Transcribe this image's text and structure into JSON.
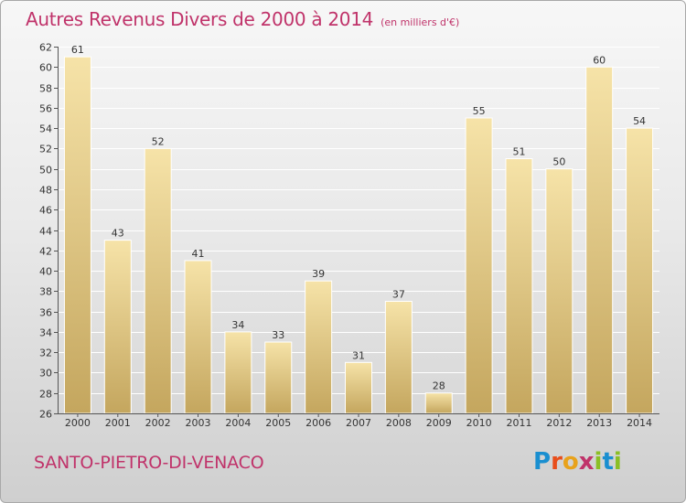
{
  "header": {
    "title": "Autres Revenus Divers de 2000 à 2014",
    "subtitle": "(en milliers d'€)"
  },
  "footer": {
    "place": "SANTO-PIETRO-DI-VENACO",
    "logo": "Proxiti"
  },
  "colors": {
    "title": "#c0336a",
    "bar_light": "#f6e3a8",
    "bar_dark": "#c4a65e",
    "logo_letters": [
      "#1a8fd0",
      "#e84e1b",
      "#e8a21b",
      "#c0336a",
      "#8bbf25",
      "#1a8fd0",
      "#8bbf25"
    ]
  },
  "chart_data": {
    "type": "bar",
    "title": "Autres Revenus Divers de 2000 à 2014",
    "subtitle": "(en milliers d'€)",
    "xlabel": "",
    "ylabel": "",
    "categories": [
      "2000",
      "2001",
      "2002",
      "2003",
      "2004",
      "2005",
      "2006",
      "2007",
      "2008",
      "2009",
      "2010",
      "2011",
      "2012",
      "2013",
      "2014"
    ],
    "values": [
      61,
      43,
      52,
      41,
      34,
      33,
      39,
      31,
      37,
      28,
      55,
      51,
      50,
      60,
      54
    ],
    "ylim": [
      26,
      62
    ],
    "yticks": [
      26,
      28,
      30,
      32,
      34,
      36,
      38,
      40,
      42,
      44,
      46,
      48,
      50,
      52,
      54,
      56,
      58,
      60,
      62
    ],
    "grid": true,
    "data_labels": true
  }
}
